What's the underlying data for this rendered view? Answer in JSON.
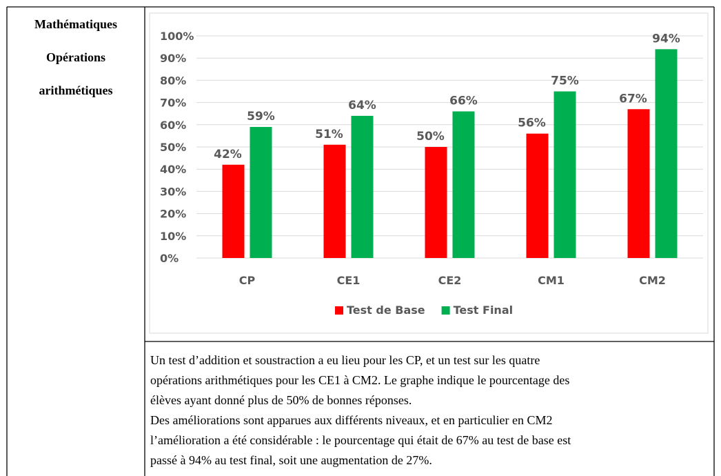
{
  "table": {
    "label": [
      "Mathématiques",
      "Opérations",
      "arithmétiques"
    ]
  },
  "chart_data": {
    "type": "bar",
    "categories": [
      "CP",
      "CE1",
      "CE2",
      "CM1",
      "CM2"
    ],
    "series": [
      {
        "name": "Test de Base",
        "color": "#ff0000",
        "values": [
          42,
          51,
          50,
          56,
          67
        ],
        "value_labels": [
          "42%",
          "51%",
          "50%",
          "56%",
          "67%"
        ]
      },
      {
        "name": "Test Final",
        "color": "#00b050",
        "values": [
          59,
          64,
          66,
          75,
          94
        ],
        "value_labels": [
          "59%",
          "64%",
          "66%",
          "75%",
          "94%"
        ]
      }
    ],
    "ylim": [
      0,
      100
    ],
    "yticks": [
      {
        "value": 0,
        "label": "0%"
      },
      {
        "value": 10,
        "label": "10%"
      },
      {
        "value": 20,
        "label": "20%"
      },
      {
        "value": 30,
        "label": "30%"
      },
      {
        "value": 40,
        "label": "40%"
      },
      {
        "value": 50,
        "label": "50%"
      },
      {
        "value": 60,
        "label": "60%"
      },
      {
        "value": 70,
        "label": "70%"
      },
      {
        "value": 80,
        "label": "80%"
      },
      {
        "value": 90,
        "label": "90%"
      },
      {
        "value": 100,
        "label": "100%"
      }
    ],
    "grid": true,
    "legend": "bottom"
  },
  "paragraphs": [
    [
      "Un test d’addition et soustraction a eu lieu pour les CP, et un test sur les quatre",
      "opérations arithmétiques pour les CE1 à CM2. Le graphe indique le pourcentage des",
      "élèves ayant donné plus de 50% de bonnes réponses."
    ],
    [
      "Des améliorations sont apparues aux différents niveaux, et en particulier en CM2",
      "l’amélioration a été considérable : le pourcentage qui était de 67% au test de base est",
      "passé à 94% au test final, soit une augmentation de 27%."
    ]
  ]
}
